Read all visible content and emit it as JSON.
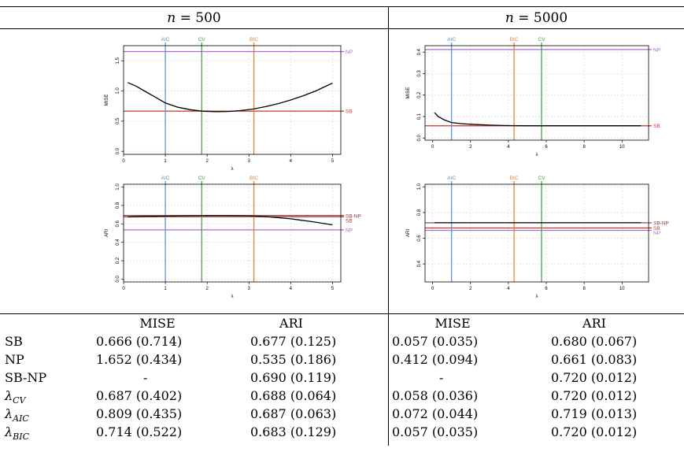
{
  "panels": [
    {
      "id": "n500",
      "header_expr": "n = 500",
      "charts": [
        {
          "metric": "MISE",
          "chart_data": {
            "type": "line",
            "ylabel": "MISE",
            "xlabel": "λ",
            "xlim": [
              0,
              5.2
            ],
            "ylim": [
              -0.05,
              1.75
            ],
            "xticks": [
              0,
              1,
              2,
              3,
              4,
              5
            ],
            "yticks": [
              0,
              0.5,
              1.0,
              1.5
            ],
            "ytick_labels": [
              "0.0",
              "0.5",
              "1.0",
              "1.5"
            ],
            "curve": [
              [
                0.1,
                1.14
              ],
              [
                0.3,
                1.08
              ],
              [
                0.5,
                1.0
              ],
              [
                0.7,
                0.92
              ],
              [
                1.0,
                0.8
              ],
              [
                1.3,
                0.73
              ],
              [
                1.6,
                0.69
              ],
              [
                1.9,
                0.665
              ],
              [
                2.2,
                0.655
              ],
              [
                2.5,
                0.66
              ],
              [
                2.8,
                0.675
              ],
              [
                3.1,
                0.7
              ],
              [
                3.4,
                0.74
              ],
              [
                3.7,
                0.79
              ],
              [
                4.0,
                0.85
              ],
              [
                4.3,
                0.92
              ],
              [
                4.6,
                1.0
              ],
              [
                5.0,
                1.13
              ]
            ],
            "hlines": [
              {
                "label": "NP",
                "value": 1.652,
                "color": "#a66dd6"
              },
              {
                "label": "SB",
                "value": 0.666,
                "color": "#c0392b"
              }
            ],
            "vlines": [
              {
                "label": "AIC",
                "value": 1.0,
                "color": "#4f8fd0"
              },
              {
                "label": "CV",
                "value": 1.87,
                "color": "#3b9a3b"
              },
              {
                "label": "BIC",
                "value": 3.12,
                "color": "#e67e22"
              }
            ]
          }
        },
        {
          "metric": "ARI",
          "chart_data": {
            "type": "line",
            "ylabel": "ARI",
            "xlabel": "λ",
            "xlim": [
              0,
              5.2
            ],
            "ylim": [
              -0.03,
              1.03
            ],
            "xticks": [
              0,
              1,
              2,
              3,
              4,
              5
            ],
            "yticks": [
              0,
              0.2,
              0.4,
              0.6,
              0.8,
              1.0
            ],
            "ytick_labels": [
              "0.0",
              "0.2",
              "0.4",
              "0.6",
              "0.8",
              "1.0"
            ],
            "curve": [
              [
                0.1,
                0.675
              ],
              [
                0.5,
                0.68
              ],
              [
                1.0,
                0.685
              ],
              [
                1.5,
                0.688
              ],
              [
                2.0,
                0.69
              ],
              [
                2.5,
                0.69
              ],
              [
                3.0,
                0.688
              ],
              [
                3.5,
                0.675
              ],
              [
                4.0,
                0.655
              ],
              [
                4.5,
                0.625
              ],
              [
                5.0,
                0.59
              ]
            ],
            "hlines": [
              {
                "label": "SB-NP",
                "value": 0.69,
                "color": "#8b3a3a"
              },
              {
                "label": "SB",
                "value": 0.677,
                "color": "#c0392b"
              },
              {
                "label": "NP",
                "value": 0.535,
                "color": "#a66dd6"
              }
            ],
            "vlines": [
              {
                "label": "AIC",
                "value": 1.0,
                "color": "#4f8fd0"
              },
              {
                "label": "CV",
                "value": 1.87,
                "color": "#3b9a3b"
              },
              {
                "label": "BIC",
                "value": 3.12,
                "color": "#e67e22"
              }
            ]
          }
        }
      ]
    },
    {
      "id": "n5000",
      "header_expr": "n = 5000",
      "charts": [
        {
          "metric": "MISE",
          "chart_data": {
            "type": "line",
            "ylabel": "MISE",
            "xlabel": "λ",
            "xlim": [
              -0.4,
              11.4
            ],
            "ylim": [
              -0.01,
              0.43
            ],
            "xticks": [
              0,
              2,
              4,
              6,
              8,
              10
            ],
            "yticks": [
              0,
              0.1,
              0.2,
              0.3,
              0.4
            ],
            "ytick_labels": [
              "0.0",
              "0.1",
              "0.2",
              "0.3",
              "0.4"
            ],
            "curve": [
              [
                0.1,
                0.118
              ],
              [
                0.3,
                0.1
              ],
              [
                0.6,
                0.085
              ],
              [
                1.0,
                0.072
              ],
              [
                1.5,
                0.067
              ],
              [
                2.0,
                0.064
              ],
              [
                3.0,
                0.06
              ],
              [
                4.0,
                0.058
              ],
              [
                5.0,
                0.057
              ],
              [
                7.0,
                0.057
              ],
              [
                9.0,
                0.057
              ],
              [
                11.0,
                0.057
              ]
            ],
            "hlines": [
              {
                "label": "NP",
                "value": 0.412,
                "color": "#a66dd6"
              },
              {
                "label": "SB",
                "value": 0.057,
                "color": "#c0392b"
              }
            ],
            "vlines": [
              {
                "label": "AIC",
                "value": 1.0,
                "color": "#4f8fd0"
              },
              {
                "label": "BIC",
                "value": 4.3,
                "color": "#e67e22"
              },
              {
                "label": "CV",
                "value": 5.75,
                "color": "#3b9a3b"
              }
            ]
          }
        },
        {
          "metric": "ARI",
          "chart_data": {
            "type": "line",
            "ylabel": "ARI",
            "xlabel": "λ",
            "xlim": [
              -0.4,
              11.4
            ],
            "ylim": [
              0.26,
              1.02
            ],
            "xticks": [
              0,
              2,
              4,
              6,
              8,
              10
            ],
            "yticks": [
              0.4,
              0.6,
              0.8,
              1.0
            ],
            "ytick_labels": [
              "0.4",
              "0.6",
              "0.8",
              "1.0"
            ],
            "curve": [
              [
                0.1,
                0.72
              ],
              [
                11.0,
                0.72
              ]
            ],
            "hlines": [
              {
                "label": "SB-NP",
                "value": 0.72,
                "color": "#8b3a3a"
              },
              {
                "label": "SB",
                "value": 0.68,
                "color": "#c0392b"
              },
              {
                "label": "NP",
                "value": 0.661,
                "color": "#a66dd6"
              }
            ],
            "vlines": [
              {
                "label": "AIC",
                "value": 1.0,
                "color": "#4f8fd0"
              },
              {
                "label": "BIC",
                "value": 4.3,
                "color": "#e67e22"
              },
              {
                "label": "CV",
                "value": 5.75,
                "color": "#3b9a3b"
              }
            ]
          }
        }
      ]
    }
  ],
  "table": {
    "col_headers": [
      "MISE",
      "ARI",
      "MISE",
      "ARI"
    ],
    "rows": [
      {
        "label": "SB",
        "values": [
          "0.666 (0.714)",
          "0.677 (0.125)",
          "0.057 (0.035)",
          "0.680 (0.067)"
        ]
      },
      {
        "label": "NP",
        "values": [
          "1.652 (0.434)",
          "0.535 (0.186)",
          "0.412 (0.094)",
          "0.661 (0.083)"
        ]
      },
      {
        "label": "SB-NP",
        "values": [
          "-",
          "0.690 (0.119)",
          "-",
          "0.720 (0.012)"
        ]
      },
      {
        "label": "λ",
        "sub": "CV",
        "values": [
          "0.687 (0.402)",
          "0.688 (0.064)",
          "0.058 (0.036)",
          "0.720 (0.012)"
        ]
      },
      {
        "label": "λ",
        "sub": "AIC",
        "values": [
          "0.809 (0.435)",
          "0.687 (0.063)",
          "0.072 (0.044)",
          "0.719 (0.013)"
        ]
      },
      {
        "label": "λ",
        "sub": "BIC",
        "values": [
          "0.714 (0.522)",
          "0.683 (0.129)",
          "0.057 (0.035)",
          "0.720 (0.012)"
        ]
      }
    ]
  }
}
